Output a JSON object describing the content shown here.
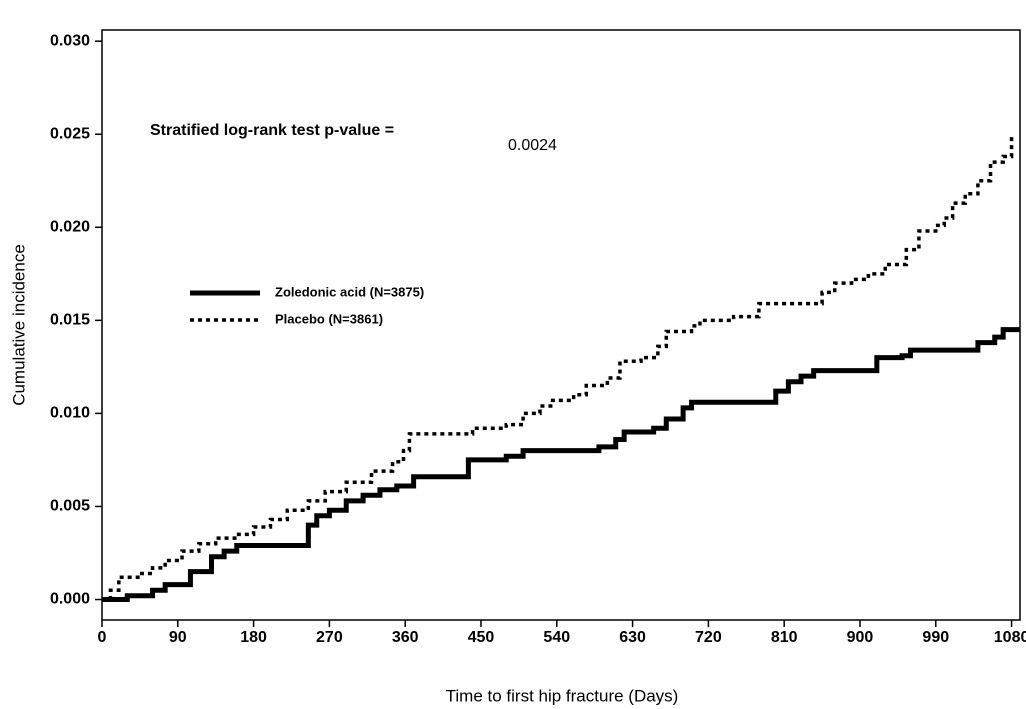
{
  "chart_data": {
    "type": "step",
    "annotation": "Stratified log-rank test p-value =",
    "annotation_value": "0.0024",
    "x_label": "Time to first hip fracture (Days)",
    "y_label": "Cumulative incidence",
    "xlim": [
      0,
      1090
    ],
    "xticks": [
      0,
      90,
      180,
      270,
      360,
      450,
      540,
      630,
      720,
      810,
      900,
      990,
      1080
    ],
    "ylim": [
      -0.0011,
      0.0306
    ],
    "yticks": [
      {
        "value": 0,
        "label": "0.000"
      },
      0.005,
      {
        "value": 0.01,
        "label": "0.010"
      },
      0.015,
      {
        "value": 0.02,
        "label": "0.020"
      },
      0.025,
      {
        "value": 0.03,
        "label": "0.030"
      }
    ],
    "legend": "left",
    "series": [
      {
        "name": "Zoledonic acid (N=3875)",
        "color": "#000000",
        "style": "solid",
        "x": [
          0,
          30,
          60,
          75,
          105,
          130,
          145,
          160,
          245,
          255,
          270,
          290,
          310,
          330,
          350,
          370,
          435,
          480,
          500,
          590,
          610,
          620,
          655,
          670,
          690,
          700,
          800,
          815,
          830,
          845,
          920,
          950,
          960,
          1040,
          1060,
          1070,
          1090
        ],
        "values": [
          0,
          0.0002,
          0.0005,
          0.0008,
          0.0015,
          0.0023,
          0.0026,
          0.0029,
          0.004,
          0.0045,
          0.0048,
          0.0053,
          0.0056,
          0.0059,
          0.0061,
          0.0066,
          0.0075,
          0.0077,
          0.008,
          0.0082,
          0.0086,
          0.009,
          0.0092,
          0.0097,
          0.0103,
          0.0106,
          0.0112,
          0.0117,
          0.012,
          0.0123,
          0.013,
          0.0131,
          0.0134,
          0.0138,
          0.0141,
          0.0145,
          0.0145
        ]
      },
      {
        "name": "Placebo (N=3861)",
        "color": "#000000",
        "style": "dotted",
        "x": [
          0,
          10,
          20,
          45,
          60,
          75,
          95,
          115,
          135,
          160,
          180,
          200,
          220,
          245,
          265,
          290,
          320,
          345,
          358,
          365,
          440,
          480,
          500,
          520,
          535,
          560,
          575,
          600,
          615,
          640,
          660,
          670,
          700,
          710,
          750,
          780,
          855,
          870,
          890,
          910,
          930,
          955,
          970,
          990,
          1000,
          1010,
          1025,
          1040,
          1055,
          1070,
          1080
        ],
        "values": [
          0,
          0.0005,
          0.0012,
          0.0014,
          0.0017,
          0.0021,
          0.0026,
          0.003,
          0.0033,
          0.0035,
          0.0039,
          0.0043,
          0.0048,
          0.0053,
          0.0058,
          0.0063,
          0.0069,
          0.0074,
          0.008,
          0.0089,
          0.0092,
          0.0094,
          0.01,
          0.0104,
          0.0107,
          0.011,
          0.0115,
          0.0119,
          0.0128,
          0.013,
          0.0136,
          0.0144,
          0.0147,
          0.015,
          0.0152,
          0.0159,
          0.0165,
          0.017,
          0.0172,
          0.0175,
          0.018,
          0.0188,
          0.0198,
          0.0201,
          0.0205,
          0.0213,
          0.0218,
          0.0225,
          0.0235,
          0.0238,
          0.025
        ]
      }
    ]
  }
}
